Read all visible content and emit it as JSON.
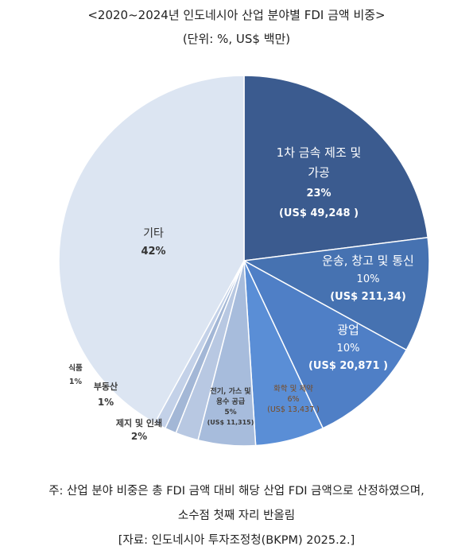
{
  "title": "<2020~2024년 인도네시아 산업 분야별 FDI 금액 비중>",
  "subtitle": "(단위: %, US$ 백만)",
  "chart_data": {
    "type": "pie",
    "slices": [
      {
        "key": "s1",
        "label": "1차 금속 제조 및 가공",
        "label_lines": [
          "1차 금속 제조 및",
          "가공"
        ],
        "percent_text": "23%",
        "amount_text": "(US$  49,248 )",
        "value": 23,
        "color": "#3b5b8f"
      },
      {
        "key": "s2",
        "label": "운송, 창고 및 통신",
        "label_lines": [
          "운송, 창고 및 통신"
        ],
        "percent_text": "10%",
        "amount_text": "(US$ 211,34)",
        "value": 10,
        "color": "#4672b1"
      },
      {
        "key": "s3",
        "label": "광업",
        "label_lines": [
          "광업"
        ],
        "percent_text": "10%",
        "amount_text": "(US$  20,871 )",
        "value": 10,
        "color": "#4f7fc6"
      },
      {
        "key": "s4",
        "label": "화학 및 제약",
        "label_lines": [
          "화학 및 제약"
        ],
        "percent_text": "6%",
        "amount_text": "(US$  13,437 )",
        "value": 6,
        "color": "#5a8ed6"
      },
      {
        "key": "s5",
        "label": "전기, 가스 및 용수 공급",
        "label_lines": [
          "전기, 가스 및",
          "용수 공급"
        ],
        "percent_text": "5%",
        "amount_text": "(US$ 11,315)",
        "value": 5,
        "color": "#a7bcdc"
      },
      {
        "key": "s6",
        "label": "제지 및 인쇄",
        "label_lines": [
          "제지 및 인쇄"
        ],
        "percent_text": "2%",
        "amount_text": "",
        "value": 2,
        "color": "#b8c8e2"
      },
      {
        "key": "s7",
        "label": "부동산",
        "label_lines": [
          "부동산"
        ],
        "percent_text": "1%",
        "amount_text": "",
        "value": 1,
        "color": "#a3b7d6"
      },
      {
        "key": "s8",
        "label": "식품",
        "label_lines": [
          "식품"
        ],
        "percent_text": "1%",
        "amount_text": "",
        "value": 1,
        "color": "#c3d1e8"
      },
      {
        "key": "s9",
        "label": "기타",
        "label_lines": [
          "기타"
        ],
        "percent_text": "42%",
        "amount_text": "",
        "value": 42,
        "color": "#dce5f2"
      }
    ]
  },
  "notes": {
    "line1": "주: 산업 분야 비중은 총 FDI 금액 대비 해당 산업 FDI 금액으로 산정하였으며,",
    "line2": "소수점 첫째 자리 반올림",
    "source": "[자료: 인도네시아 투자조정청(BKPM) 2025.2.]"
  }
}
